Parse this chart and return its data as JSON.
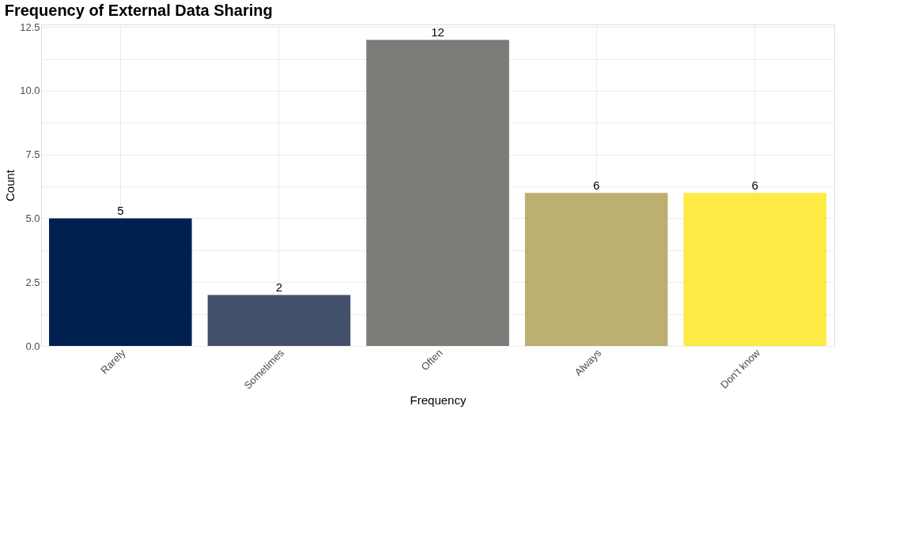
{
  "chart_data": {
    "type": "bar",
    "title": "Frequency of External Data Sharing",
    "xlabel": "Frequency",
    "ylabel": "Count",
    "categories": [
      "Rarely",
      "Sometimes",
      "Often",
      "Always",
      "Don't know"
    ],
    "values": [
      5,
      2,
      12,
      6,
      6
    ],
    "colors": [
      "#002051",
      "#43506c",
      "#7c7b78",
      "#bdaf6f",
      "#fdea45"
    ],
    "ylim": [
      0,
      12.6
    ],
    "yticks": [
      {
        "value": 0,
        "label": "0.0"
      },
      {
        "value": 1.25,
        "label": null
      },
      {
        "value": 2.5,
        "label": "2.5"
      },
      {
        "value": 3.75,
        "label": null
      },
      {
        "value": 5,
        "label": "5.0"
      },
      {
        "value": 6.25,
        "label": null
      },
      {
        "value": 7.5,
        "label": "7.5"
      },
      {
        "value": 8.75,
        "label": null
      },
      {
        "value": 10,
        "label": "10.0"
      },
      {
        "value": 11.25,
        "label": null
      },
      {
        "value": 12.5,
        "label": "12.5"
      }
    ],
    "data_labels": true,
    "grid": true
  }
}
